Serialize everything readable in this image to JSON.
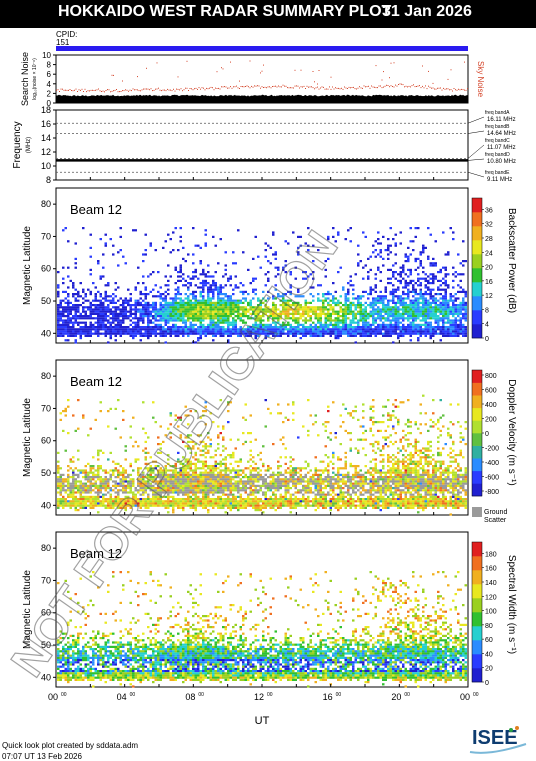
{
  "header": {
    "title": "HOKKAIDO WEST RADAR SUMMARY PLOT",
    "date": "31 Jan 2026",
    "cpid_label": "CPID:",
    "cpid_value": "151"
  },
  "watermark": "NOT FOR PUBLICATION",
  "footer": {
    "credit": "Quick look plot created by sddata.adm",
    "generated": "07:07 UT 13 Feb 2026"
  },
  "logo_text": "ISEE",
  "colors": {
    "cpid_bar": "#2a1bf0",
    "sky_noise": "#d4452a",
    "search_noise": "#000000"
  },
  "chart_data": [
    {
      "type": "area",
      "panel": "noise",
      "ylabel_main": "Search Noise",
      "ylabel_sub": "log₁₀(noise × 10⁻⁶)",
      "right_label": "Sky Noise",
      "yticks": [
        "0",
        "2",
        "4",
        "6",
        "8",
        "10"
      ],
      "ylim": [
        0,
        10
      ],
      "x_hours": [
        0,
        1,
        2,
        3,
        4,
        5,
        6,
        7,
        8,
        9,
        10,
        11,
        12,
        13,
        14,
        15,
        16,
        17,
        18,
        19,
        20,
        21,
        22,
        23,
        24
      ],
      "search_noise": [
        1.6,
        1.5,
        1.5,
        1.6,
        1.5,
        1.6,
        1.5,
        1.6,
        1.6,
        1.5,
        1.6,
        1.5,
        1.6,
        1.5,
        1.6,
        1.5,
        1.6,
        1.6,
        1.5,
        1.6,
        1.5,
        1.6,
        1.5,
        1.6,
        1.6
      ],
      "sky_noise": [
        2.8,
        2.7,
        2.8,
        2.7,
        2.8,
        2.8,
        2.9,
        2.8,
        3.0,
        3.1,
        3.3,
        3.4,
        3.5,
        3.6,
        3.5,
        3.3,
        3.2,
        3.2,
        3.4,
        3.6,
        3.8,
        3.6,
        3.2,
        2.9,
        2.8
      ]
    },
    {
      "type": "line",
      "panel": "frequency",
      "ylabel_main": "Frequency",
      "ylabel_sub": "(MHz)",
      "yticks": [
        "8",
        "10",
        "12",
        "14",
        "16",
        "18"
      ],
      "ylim": [
        8,
        18
      ],
      "selected_frequency": 10.8,
      "bands": [
        {
          "name": "freq bandA",
          "value": "16.11 MHz",
          "freq": 16.11
        },
        {
          "name": "freq bandB",
          "value": "14.64 MHz",
          "freq": 14.64
        },
        {
          "name": "freq bandC",
          "value": "11.07 MHz",
          "freq": 11.07
        },
        {
          "name": "freq bandD",
          "value": "10.80 MHz",
          "freq": 10.8
        },
        {
          "name": "freq bandE",
          "value": "9.11 MHz",
          "freq": 9.11
        }
      ]
    },
    {
      "type": "heatmap",
      "panel": "power",
      "beam_label": "Beam 12",
      "ylabel": "Magnetic Latitude",
      "yticks": [
        "40",
        "50",
        "60",
        "70",
        "80"
      ],
      "ylim": [
        37,
        85
      ],
      "colorbar_label": "Backscatter Power (dB)",
      "colorbar_ticks": [
        "0",
        "4",
        "8",
        "12",
        "16",
        "20",
        "24",
        "28",
        "32",
        "36"
      ],
      "colorbar_range": [
        0,
        36
      ],
      "colorbar_colors": [
        "#2020d0",
        "#2a3cff",
        "#2a8cff",
        "#25d0d0",
        "#30c030",
        "#9ad020",
        "#e8e820",
        "#f0b020",
        "#f07020",
        "#e02020"
      ]
    },
    {
      "type": "heatmap",
      "panel": "velocity",
      "beam_label": "Beam 12",
      "ylabel": "Magnetic Latitude",
      "yticks": [
        "40",
        "50",
        "60",
        "70",
        "80"
      ],
      "ylim": [
        37,
        85
      ],
      "colorbar_label": "Doppler Velocity (m s⁻¹)",
      "colorbar_ticks": [
        "800",
        "600",
        "400",
        "200",
        "0",
        "-200",
        "-400",
        "-600",
        "-800"
      ],
      "colorbar_range": [
        -800,
        800
      ],
      "colorbar_colors": [
        "#e02020",
        "#f07020",
        "#f0b020",
        "#e8e820",
        "#b0e030",
        "#60c040",
        "#30b0a0",
        "#2a8cff",
        "#2a3cff",
        "#2020d0"
      ],
      "ground_scatter_label": [
        "Ground",
        "Scatter"
      ]
    },
    {
      "type": "heatmap",
      "panel": "width",
      "beam_label": "Beam 12",
      "ylabel": "Magnetic Latitude",
      "yticks": [
        "40",
        "50",
        "60",
        "70",
        "80"
      ],
      "ylim": [
        37,
        85
      ],
      "colorbar_label": "Spectral Width (m s⁻¹)",
      "colorbar_ticks": [
        "0",
        "20",
        "40",
        "60",
        "80",
        "100",
        "120",
        "140",
        "160",
        "180"
      ],
      "colorbar_range": [
        0,
        180
      ],
      "colorbar_colors": [
        "#2020d0",
        "#2a3cff",
        "#2a8cff",
        "#25d0d0",
        "#30c030",
        "#9ad020",
        "#e8e820",
        "#f0b020",
        "#f07020",
        "#e02020"
      ]
    }
  ],
  "x_axis": {
    "label": "UT",
    "ticks": [
      "00",
      "04",
      "08",
      "12",
      "16",
      "20",
      "00"
    ],
    "tick_suffix": "00",
    "range_hours": [
      0,
      24
    ]
  }
}
